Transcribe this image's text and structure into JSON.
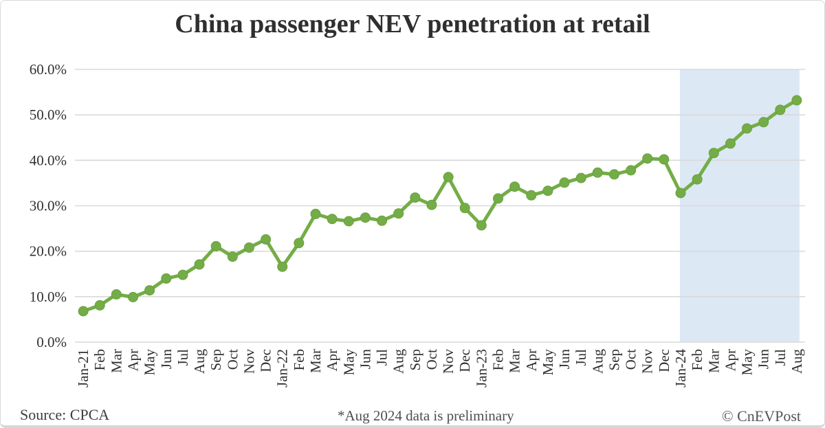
{
  "page": {
    "title": "China passenger NEV penetration at retail",
    "footer": {
      "source": "Source: CPCA",
      "note": "*Aug 2024 data is preliminary",
      "credit": "© CnEVPost"
    }
  },
  "chart_data": {
    "type": "line",
    "title": "China passenger NEV penetration at retail",
    "xlabel": "",
    "ylabel": "",
    "x": [
      "Jan-21",
      "Feb",
      "Mar",
      "Apr",
      "May",
      "Jun",
      "Jul",
      "Aug",
      "Sep",
      "Oct",
      "Nov",
      "Dec",
      "Jan-22",
      "Feb",
      "Mar",
      "Apr",
      "May",
      "Jun",
      "Jul",
      "Aug",
      "Sep",
      "Oct",
      "Nov",
      "Dec",
      "Jan-23",
      "Feb",
      "Mar",
      "Apr",
      "May",
      "Jun",
      "Jul",
      "Aug",
      "Sep",
      "Oct",
      "Nov",
      "Dec",
      "Jan-24",
      "Feb",
      "Mar",
      "Apr",
      "May",
      "Jun",
      "Jul",
      "Aug"
    ],
    "series": [
      {
        "name": "NEV penetration at retail (%)",
        "values": [
          6.8,
          8.1,
          10.5,
          9.9,
          11.4,
          14.0,
          14.8,
          17.1,
          21.1,
          18.8,
          20.8,
          22.6,
          16.6,
          21.8,
          28.2,
          27.1,
          26.6,
          27.4,
          26.7,
          28.3,
          31.8,
          30.2,
          36.3,
          29.5,
          25.7,
          31.6,
          34.2,
          32.3,
          33.3,
          35.1,
          36.1,
          37.3,
          36.9,
          37.8,
          40.4,
          40.2,
          32.8,
          35.8,
          41.6,
          43.7,
          47.0,
          48.4,
          51.1,
          53.2
        ]
      }
    ],
    "ylim": [
      0,
      60
    ],
    "ytick_step": 10,
    "ytick_labels": [
      "0.0%",
      "10.0%",
      "20.0%",
      "30.0%",
      "40.0%",
      "50.0%",
      "60.0%"
    ],
    "grid": true,
    "legend": "none",
    "highlight_region": {
      "start_label": "Jan-24",
      "end_label": "Aug",
      "start_index": 36,
      "end_index": 43,
      "meaning": "2024 months incl. preliminary Aug data"
    },
    "colors": {
      "line": "#74AD47",
      "marker": "#74AD47",
      "marker_edge": "#699F3E",
      "highlight_fill": "#DCE8F4",
      "grid": "#D9D9D9",
      "tick_text": "#303030"
    }
  }
}
